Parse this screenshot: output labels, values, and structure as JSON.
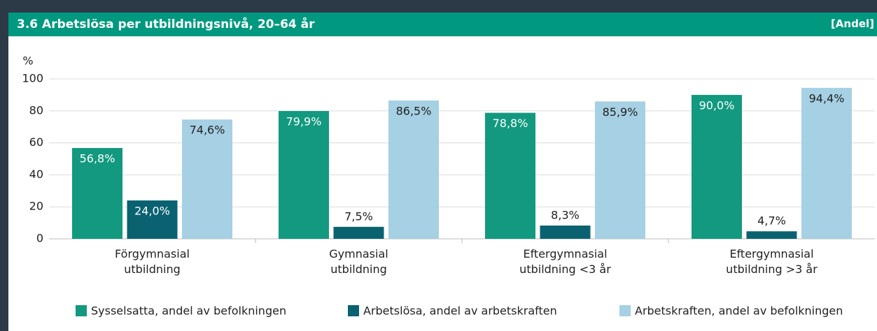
{
  "chart_data": {
    "type": "bar",
    "title": "3.6  Arbetslösa per utbildningsnivå, 20–64 år",
    "unit": "[Andel]",
    "y_label": "%",
    "categories": [
      "Förgymnasial utbildning",
      "Gymnasial utbildning",
      "Eftergymnasial utbildning <3 år",
      "Eftergymnasial utbildning >3 år"
    ],
    "series": [
      {
        "name": "Sysselsatta, andel av befolkningen",
        "color": "#12997f",
        "values": [
          56.8,
          79.9,
          78.8,
          90.0
        ],
        "value_labels": [
          "56,8%",
          "79,9%",
          "78,8%",
          "90,0%"
        ]
      },
      {
        "name": "Arbetslösa, andel av arbetskraften",
        "color": "#0a6271",
        "values": [
          24.0,
          7.5,
          8.3,
          4.7
        ],
        "value_labels": [
          "24,0%",
          "7,5%",
          "8,3%",
          "4,7%"
        ]
      },
      {
        "name": "Arbetskraften, andel av befolkningen",
        "color": "#a6d0e3",
        "values": [
          74.6,
          86.5,
          85.9,
          94.4
        ],
        "value_labels": [
          "74,6%",
          "86,5%",
          "85,9%",
          "94,4%"
        ]
      }
    ],
    "ylim": [
      0,
      100
    ],
    "yticks": [
      0,
      20,
      40,
      60,
      80,
      100
    ],
    "grid": true
  }
}
